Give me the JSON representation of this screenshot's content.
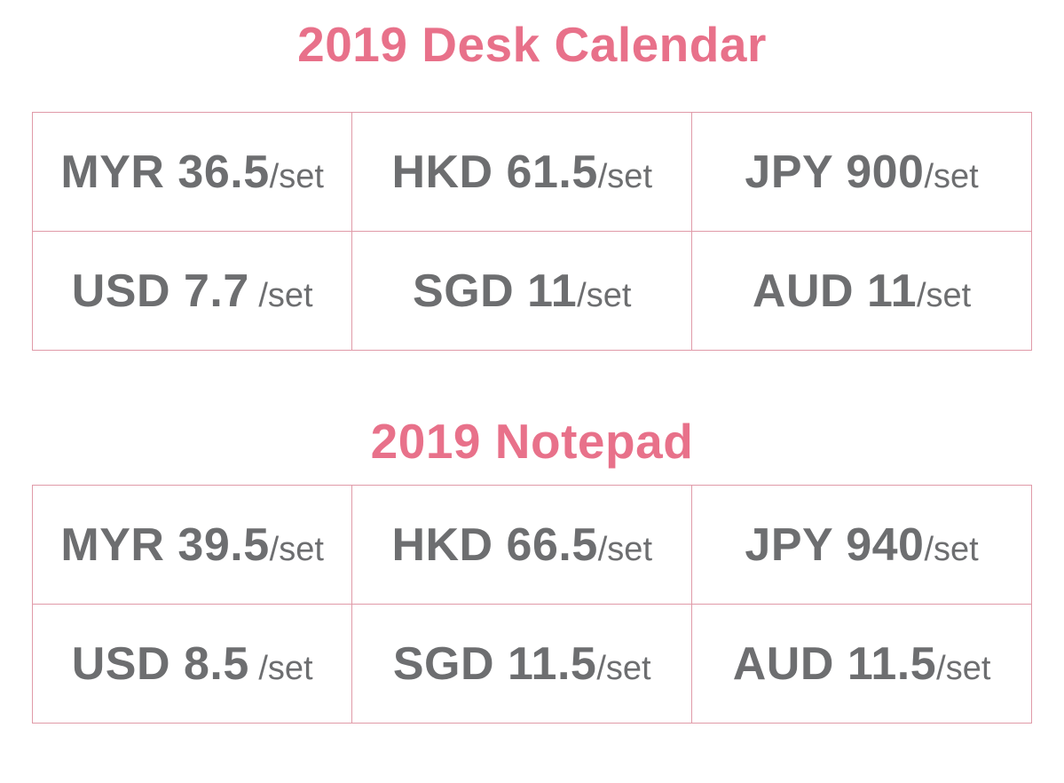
{
  "colors": {
    "title_pink": "#e8718a",
    "border_pink": "#e09aa8",
    "text_gray": "#6d6e70",
    "background": "#ffffff"
  },
  "sections": [
    {
      "title": "2019 Desk Calendar",
      "rows": [
        [
          {
            "price": "MYR 36.5",
            "unit": "/set"
          },
          {
            "price": "HKD 61.5",
            "unit": "/set"
          },
          {
            "price": "JPY 900",
            "unit": "/set"
          }
        ],
        [
          {
            "price": "USD 7.7",
            "unit": " /set"
          },
          {
            "price": "SGD 11",
            "unit": "/set"
          },
          {
            "price": "AUD 11",
            "unit": "/set"
          }
        ]
      ]
    },
    {
      "title": "2019 Notepad",
      "rows": [
        [
          {
            "price": "MYR 39.5",
            "unit": "/set"
          },
          {
            "price": "HKD 66.5",
            "unit": "/set"
          },
          {
            "price": "JPY 940",
            "unit": "/set"
          }
        ],
        [
          {
            "price": "USD 8.5",
            "unit": " /set"
          },
          {
            "price": "SGD 11.5",
            "unit": "/set"
          },
          {
            "price": "AUD 11.5",
            "unit": "/set"
          }
        ]
      ]
    }
  ]
}
